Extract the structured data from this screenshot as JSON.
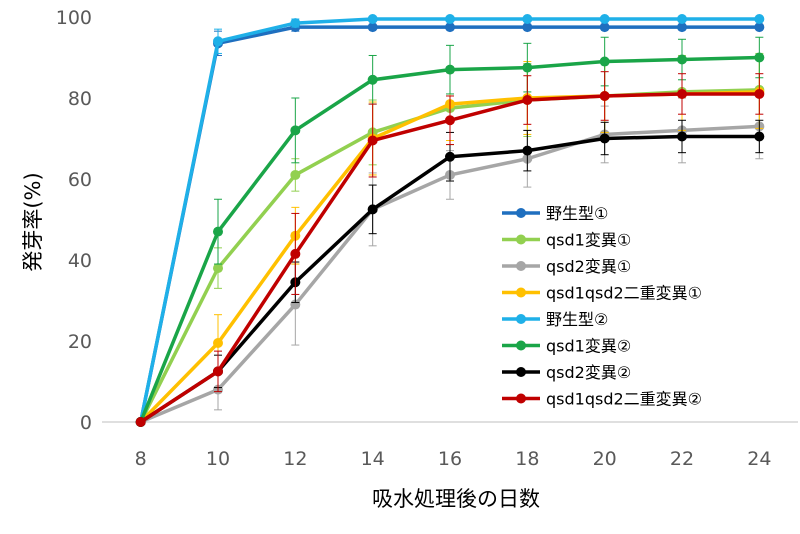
{
  "chart_data": {
    "type": "line",
    "title": "",
    "xlabel": "吸水処理後の日数",
    "ylabel": "発芽率(%)",
    "x": [
      8,
      10,
      12,
      14,
      16,
      18,
      20,
      22,
      24
    ],
    "xlim": [
      7,
      25
    ],
    "ylim": [
      0,
      100
    ],
    "yticks": [
      0,
      20,
      40,
      60,
      80,
      100
    ],
    "grid": false,
    "legend_position": "right-inside",
    "series": [
      {
        "name": "野生型①",
        "color": "#1f6fbf",
        "values": [
          0,
          93.5,
          97.5,
          97.5,
          97.5,
          97.5,
          97.5,
          97.5,
          97.5
        ],
        "err": [
          0,
          3,
          1,
          0.5,
          0.5,
          0.5,
          0.5,
          0.5,
          0.5
        ]
      },
      {
        "name": "qsd1変異①",
        "color": "#92d050",
        "values": [
          0,
          38,
          61,
          71.5,
          77.5,
          79.5,
          80.5,
          81.5,
          82
        ],
        "err": [
          0,
          5,
          4,
          8,
          9,
          9,
          9,
          9,
          9
        ]
      },
      {
        "name": "qsd2変異①",
        "color": "#a6a6a6",
        "values": [
          0,
          8,
          29,
          52.5,
          61,
          65,
          71,
          72,
          73
        ],
        "err": [
          0,
          5,
          10,
          9,
          6,
          7,
          7,
          8,
          8
        ]
      },
      {
        "name": "qsd1qsd2二重変異①",
        "color": "#ffc000",
        "values": [
          0,
          19.5,
          46,
          70,
          78.5,
          80,
          80.5,
          81,
          81.5
        ],
        "err": [
          0,
          7,
          7,
          9,
          9,
          9,
          9,
          9,
          9
        ]
      },
      {
        "name": "野生型②",
        "color": "#1fb0e8",
        "values": [
          0,
          94,
          98.5,
          99.5,
          99.5,
          99.5,
          99.5,
          99.5,
          99.5
        ],
        "err": [
          0,
          3,
          1,
          0.5,
          0.5,
          0.5,
          0.5,
          0.5,
          0.5
        ]
      },
      {
        "name": "qsd1変異②",
        "color": "#1aa548",
        "values": [
          0,
          47,
          72,
          84.5,
          87,
          87.5,
          89,
          89.5,
          90
        ],
        "err": [
          0,
          8,
          8,
          6,
          6,
          6,
          6,
          5,
          5
        ]
      },
      {
        "name": "qsd2変異②",
        "color": "#000000",
        "values": [
          0,
          12.5,
          34.5,
          52.5,
          65.5,
          67,
          70,
          70.5,
          70.5
        ],
        "err": [
          0,
          4,
          5,
          6,
          6,
          5,
          4,
          4,
          4
        ]
      },
      {
        "name": "qsd1qsd2二重変異②",
        "color": "#c00000",
        "values": [
          0,
          12.5,
          41.5,
          69.5,
          74.5,
          79.5,
          80.5,
          81,
          81
        ],
        "err": [
          0,
          5,
          10,
          9,
          6,
          6,
          6,
          5,
          5
        ]
      }
    ]
  }
}
